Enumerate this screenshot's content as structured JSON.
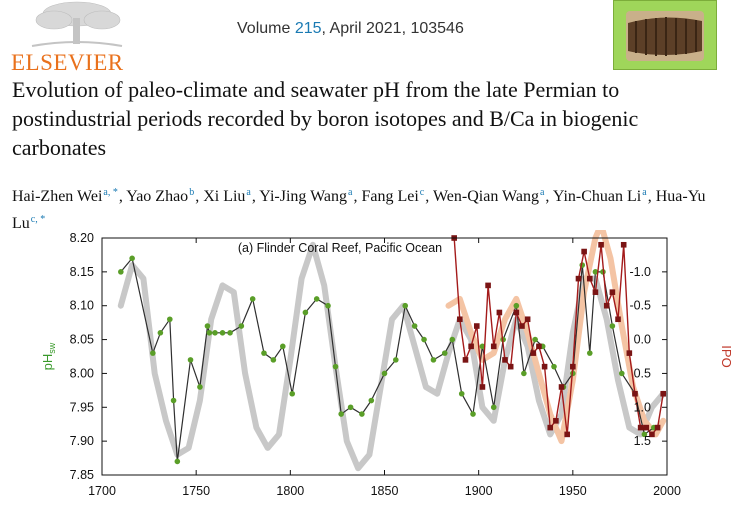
{
  "journal": {
    "publisher": "ELSEVIER",
    "volume_prefix": "Volume ",
    "volume_number": "215",
    "volume_suffix": ", April 2021, 103546"
  },
  "title": "Evolution of paleo-climate and seawater pH from the late Permian to postindustrial periods recorded by boron isotopes and B/Ca in biogenic carbonates",
  "authors": [
    {
      "name": "Hai-Zhen Wei",
      "aff": "a, *"
    },
    {
      "name": "Yao Zhao",
      "aff": "b"
    },
    {
      "name": "Xi Liu",
      "aff": "a"
    },
    {
      "name": "Yi-Jing Wang",
      "aff": "a"
    },
    {
      "name": "Fang Lei",
      "aff": "c"
    },
    {
      "name": "Wen-Qian Wang",
      "aff": "a"
    },
    {
      "name": "Yin-Chuan Li",
      "aff": "a"
    },
    {
      "name": "Hua-Yu Lu",
      "aff": "c, *"
    }
  ],
  "chart_data": {
    "type": "line",
    "title": "(a) Flinder Coral Reef, Pacific Ocean",
    "xlim": [
      1700,
      2000
    ],
    "x_ticks": [
      "1700",
      "1750",
      "1800",
      "1850",
      "1900",
      "1950",
      "2000"
    ],
    "y_left": {
      "label": "pH",
      "label_sub": "sw",
      "lim": [
        7.85,
        8.2
      ],
      "ticks": [
        "8.20",
        "8.15",
        "8.10",
        "8.05",
        "8.00",
        "7.95",
        "7.90",
        "7.85"
      ]
    },
    "y_right": {
      "label": "IPO",
      "lim": [
        2.0,
        -1.5
      ],
      "ticks": [
        "-1.0",
        "-0.5",
        "0.0",
        "0.5",
        "1.0",
        "1.5"
      ]
    },
    "series": [
      {
        "axis": "left",
        "color": "#2f2f2f",
        "marker": "#5a9e28",
        "x": [
          1710,
          1716,
          1727,
          1731,
          1736,
          1738,
          1740,
          1747,
          1752,
          1756,
          1757,
          1760,
          1764,
          1768,
          1774,
          1780,
          1786,
          1791,
          1796,
          1801,
          1808,
          1814,
          1820,
          1824,
          1827,
          1832,
          1838,
          1843,
          1850,
          1856,
          1861,
          1866,
          1871,
          1876,
          1882,
          1886,
          1891,
          1897,
          1902,
          1908,
          1913,
          1920,
          1924,
          1930,
          1934,
          1940,
          1945,
          1950,
          1955,
          1959,
          1962,
          1966,
          1971,
          1976,
          1983,
          1988,
          1993
        ],
        "y": [
          8.15,
          8.17,
          8.03,
          8.06,
          8.08,
          7.96,
          7.87,
          8.02,
          7.98,
          8.07,
          8.06,
          8.06,
          8.06,
          8.06,
          8.07,
          8.11,
          8.03,
          8.02,
          8.04,
          7.97,
          8.09,
          8.11,
          8.1,
          8.01,
          7.94,
          7.95,
          7.94,
          7.96,
          8.0,
          8.02,
          8.1,
          8.07,
          8.05,
          8.02,
          8.03,
          8.05,
          7.97,
          7.94,
          8.04,
          7.95,
          8.05,
          8.1,
          8.0,
          8.05,
          8.04,
          8.01,
          7.98,
          8.0,
          8.16,
          8.03,
          8.15,
          8.15,
          8.07,
          8.0,
          7.97,
          7.91,
          7.92
        ]
      },
      {
        "axis": "right",
        "color": "#a41b1b",
        "marker": "#7a1414",
        "x": [
          1887,
          1890,
          1893,
          1896,
          1899,
          1902,
          1905,
          1908,
          1911,
          1914,
          1917,
          1920,
          1923,
          1926,
          1929,
          1932,
          1935,
          1938,
          1941,
          1944,
          1947,
          1950,
          1953,
          1956,
          1959,
          1962,
          1965,
          1968,
          1971,
          1974,
          1977,
          1980,
          1983,
          1986,
          1989,
          1992,
          1995,
          1998
        ],
        "y": [
          -1.5,
          -0.3,
          0.3,
          0.1,
          -0.2,
          0.7,
          -0.8,
          0.1,
          -0.4,
          0.3,
          0.4,
          -0.4,
          -0.2,
          -0.3,
          0.2,
          0.1,
          0.4,
          1.3,
          1.2,
          0.7,
          1.4,
          0.4,
          -0.9,
          -1.3,
          -0.9,
          -0.7,
          -1.4,
          -0.5,
          -0.7,
          -0.3,
          -1.4,
          0.2,
          0.8,
          1.3,
          1.3,
          1.4,
          1.3,
          0.8
        ]
      },
      {
        "axis": "left",
        "color": "#c8c8c8",
        "marker": "none",
        "x": [
          1710,
          1716,
          1722,
          1728,
          1734,
          1740,
          1746,
          1752,
          1758,
          1764,
          1770,
          1776,
          1782,
          1788,
          1794,
          1800,
          1806,
          1812,
          1818,
          1824,
          1830,
          1836,
          1842,
          1848,
          1854,
          1860,
          1866,
          1872,
          1878,
          1884,
          1890,
          1896,
          1902,
          1908,
          1914,
          1920,
          1926,
          1932,
          1938,
          1944,
          1950,
          1956,
          1962,
          1968,
          1974,
          1980,
          1986,
          1992,
          1998
        ],
        "y": [
          8.1,
          8.16,
          8.14,
          8.0,
          7.93,
          7.88,
          7.89,
          7.96,
          8.08,
          8.13,
          8.12,
          8.0,
          7.92,
          7.89,
          7.91,
          8.02,
          8.14,
          8.19,
          8.13,
          8.01,
          7.9,
          7.86,
          7.88,
          7.98,
          8.08,
          8.1,
          8.04,
          7.98,
          7.97,
          8.03,
          8.08,
          8.05,
          7.95,
          7.93,
          8.02,
          8.08,
          8.04,
          7.96,
          7.91,
          7.94,
          8.06,
          8.14,
          8.14,
          8.08,
          7.99,
          7.92,
          7.91,
          7.95,
          7.97
        ]
      },
      {
        "axis": "right",
        "color": "#f4c4a4",
        "marker": "none",
        "x": [
          1884,
          1890,
          1896,
          1902,
          1908,
          1914,
          1920,
          1926,
          1932,
          1938,
          1944,
          1950,
          1956,
          1962,
          1965,
          1970,
          1976,
          1982,
          1988,
          1994,
          1998
        ],
        "y": [
          -0.5,
          -0.6,
          -0.1,
          0.3,
          0.2,
          -0.3,
          -0.6,
          -0.1,
          0.5,
          1.1,
          1.5,
          0.6,
          -0.7,
          -1.5,
          -1.7,
          -1.2,
          -0.2,
          0.7,
          1.2,
          1.4,
          1.2
        ]
      }
    ]
  }
}
